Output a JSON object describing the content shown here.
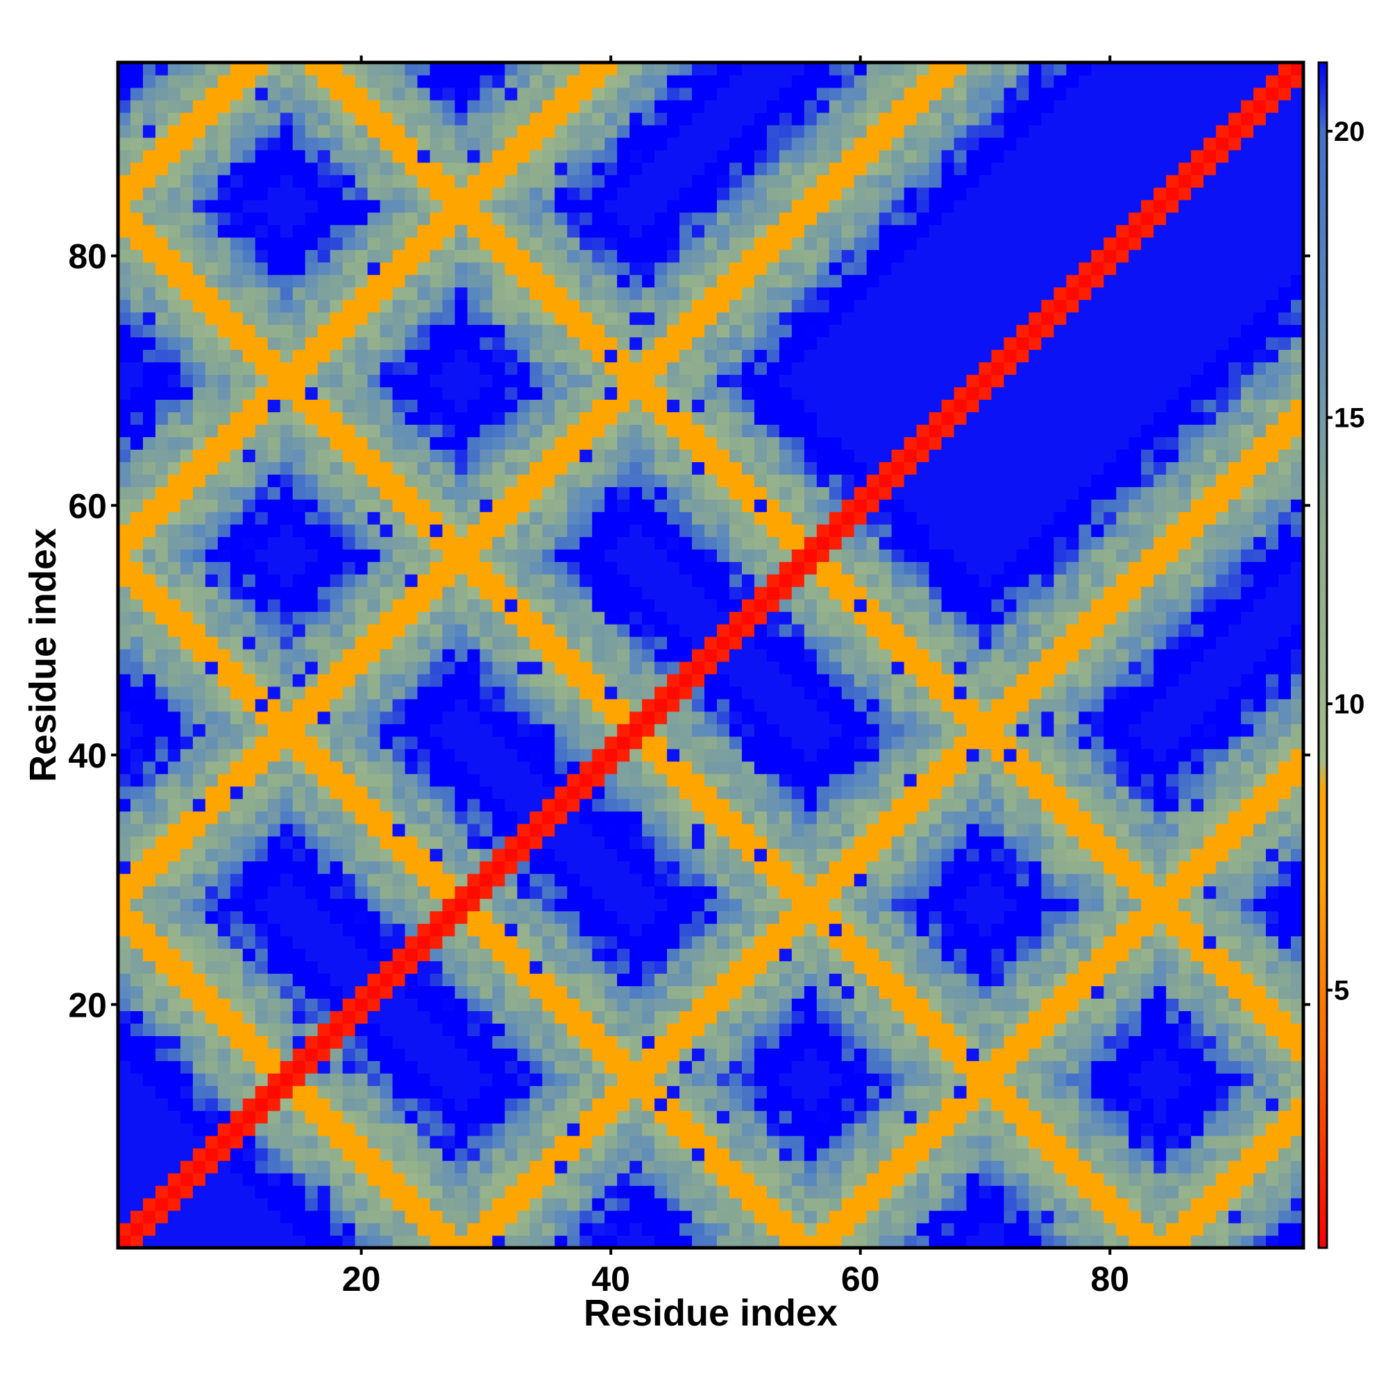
{
  "chart_data": {
    "type": "heatmap",
    "title": "",
    "xlabel": "Residue index",
    "ylabel": "Residue index",
    "n_residues": 95,
    "x_range": [
      1,
      95
    ],
    "y_range": [
      1,
      95
    ],
    "x_ticks": [
      20,
      40,
      60,
      80
    ],
    "y_ticks": [
      20,
      40,
      60,
      80
    ],
    "x_tick_labels": [
      "20",
      "40",
      "60",
      "80"
    ],
    "y_tick_labels": [
      "20",
      "40",
      "60",
      "80"
    ],
    "colorbar": {
      "range": [
        0.5,
        21.2
      ],
      "ticks": [
        5,
        10,
        15,
        20
      ],
      "tick_labels": [
        "5",
        "10",
        "15",
        "20"
      ],
      "placement": "right",
      "stops": [
        {
          "value": 0.5,
          "color": "#ff0000"
        },
        {
          "value": 4,
          "color": "#ff6a00"
        },
        {
          "value": 7,
          "color": "#ffa500"
        },
        {
          "value": 8.5,
          "color": "#ffa500"
        },
        {
          "value": 9,
          "color": "#a4bc8a"
        },
        {
          "value": 13,
          "color": "#8eac8e"
        },
        {
          "value": 17,
          "color": "#5a88c0"
        },
        {
          "value": 20,
          "color": "#4470c8"
        },
        {
          "value": 21.2,
          "color": "#0000ff"
        }
      ]
    },
    "grid": false,
    "matrix_generation": {
      "description": "symmetric residue distance map with periodic diagonal/anti-diagonal contact bands",
      "diagonal_value": 0.8,
      "background_value": 21,
      "band_orthogonal_offsets": [
        0,
        28,
        56,
        84
      ],
      "band_width": 2.2,
      "band_core_value": 7,
      "band_halo_value": 12
    }
  },
  "colors": {
    "near": "#ff0000",
    "contact": "#ffa500",
    "mid": "#9fb98c",
    "far_mid": "#5a88c0",
    "far": "#0000ff",
    "frame": "#000000"
  }
}
